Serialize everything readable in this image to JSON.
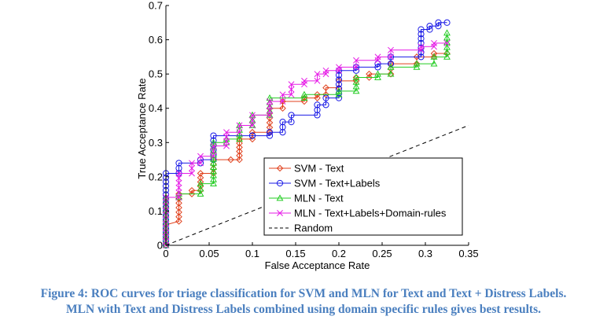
{
  "chart_data": {
    "type": "line",
    "title": "",
    "xlabel": "False Acceptance Rate",
    "ylabel": "True Acceptance Rate",
    "xlim": [
      0,
      0.35
    ],
    "ylim": [
      0,
      0.7
    ],
    "xticks": [
      "0",
      "0.05",
      "0.1",
      "0.15",
      "0.2",
      "0.25",
      "0.3",
      "0.35"
    ],
    "yticks": [
      "0",
      "0.1",
      "0.2",
      "0.3",
      "0.4",
      "0.5",
      "0.6",
      "0.7"
    ],
    "grid": false,
    "legend_position": "bottom-right",
    "series": [
      {
        "name": "SVM - Text",
        "color": "#e0401c",
        "marker": "diamond",
        "points": [
          [
            0,
            0
          ],
          [
            0,
            0.02
          ],
          [
            0,
            0.06
          ],
          [
            0.015,
            0.07
          ],
          [
            0.015,
            0.15
          ],
          [
            0.03,
            0.15
          ],
          [
            0.03,
            0.16
          ],
          [
            0.04,
            0.16
          ],
          [
            0.04,
            0.21
          ],
          [
            0.055,
            0.21
          ],
          [
            0.055,
            0.25
          ],
          [
            0.075,
            0.25
          ],
          [
            0.085,
            0.25
          ],
          [
            0.085,
            0.31
          ],
          [
            0.1,
            0.31
          ],
          [
            0.1,
            0.33
          ],
          [
            0.12,
            0.33
          ],
          [
            0.12,
            0.4
          ],
          [
            0.135,
            0.4
          ],
          [
            0.135,
            0.42
          ],
          [
            0.16,
            0.42
          ],
          [
            0.16,
            0.43
          ],
          [
            0.175,
            0.43
          ],
          [
            0.175,
            0.44
          ],
          [
            0.185,
            0.44
          ],
          [
            0.185,
            0.46
          ],
          [
            0.2,
            0.46
          ],
          [
            0.2,
            0.48
          ],
          [
            0.22,
            0.48
          ],
          [
            0.22,
            0.49
          ],
          [
            0.235,
            0.49
          ],
          [
            0.235,
            0.5
          ],
          [
            0.26,
            0.5
          ],
          [
            0.26,
            0.53
          ],
          [
            0.29,
            0.53
          ],
          [
            0.29,
            0.55
          ],
          [
            0.31,
            0.55
          ],
          [
            0.31,
            0.56
          ],
          [
            0.325,
            0.56
          ]
        ]
      },
      {
        "name": "SVM - Text+Labels",
        "color": "#1a1ae6",
        "marker": "circle",
        "points": [
          [
            0,
            0
          ],
          [
            0,
            0.21
          ],
          [
            0.015,
            0.21
          ],
          [
            0.015,
            0.24
          ],
          [
            0.04,
            0.24
          ],
          [
            0.04,
            0.25
          ],
          [
            0.055,
            0.25
          ],
          [
            0.055,
            0.32
          ],
          [
            0.1,
            0.32
          ],
          [
            0.1,
            0.32
          ],
          [
            0.12,
            0.32
          ],
          [
            0.12,
            0.33
          ],
          [
            0.135,
            0.33
          ],
          [
            0.135,
            0.36
          ],
          [
            0.145,
            0.36
          ],
          [
            0.145,
            0.38
          ],
          [
            0.175,
            0.38
          ],
          [
            0.175,
            0.41
          ],
          [
            0.185,
            0.41
          ],
          [
            0.185,
            0.43
          ],
          [
            0.2,
            0.43
          ],
          [
            0.2,
            0.51
          ],
          [
            0.22,
            0.51
          ],
          [
            0.22,
            0.52
          ],
          [
            0.245,
            0.52
          ],
          [
            0.245,
            0.53
          ],
          [
            0.26,
            0.53
          ],
          [
            0.26,
            0.55
          ],
          [
            0.295,
            0.55
          ],
          [
            0.295,
            0.63
          ],
          [
            0.305,
            0.63
          ],
          [
            0.305,
            0.64
          ],
          [
            0.315,
            0.64
          ],
          [
            0.315,
            0.65
          ],
          [
            0.325,
            0.65
          ]
        ]
      },
      {
        "name": "MLN - Text",
        "color": "#22cc22",
        "marker": "triangle",
        "points": [
          [
            0,
            0
          ],
          [
            0,
            0.14
          ],
          [
            0.015,
            0.14
          ],
          [
            0.015,
            0.15
          ],
          [
            0.04,
            0.15
          ],
          [
            0.04,
            0.18
          ],
          [
            0.055,
            0.18
          ],
          [
            0.055,
            0.3
          ],
          [
            0.07,
            0.3
          ],
          [
            0.07,
            0.31
          ],
          [
            0.085,
            0.31
          ],
          [
            0.085,
            0.35
          ],
          [
            0.1,
            0.35
          ],
          [
            0.1,
            0.38
          ],
          [
            0.12,
            0.38
          ],
          [
            0.12,
            0.43
          ],
          [
            0.16,
            0.43
          ],
          [
            0.16,
            0.44
          ],
          [
            0.2,
            0.44
          ],
          [
            0.2,
            0.45
          ],
          [
            0.22,
            0.45
          ],
          [
            0.22,
            0.49
          ],
          [
            0.245,
            0.49
          ],
          [
            0.245,
            0.5
          ],
          [
            0.26,
            0.5
          ],
          [
            0.26,
            0.52
          ],
          [
            0.29,
            0.52
          ],
          [
            0.29,
            0.53
          ],
          [
            0.31,
            0.53
          ],
          [
            0.31,
            0.55
          ],
          [
            0.325,
            0.55
          ],
          [
            0.325,
            0.62
          ]
        ]
      },
      {
        "name": "MLN - Text+Labels+Domain-rules",
        "color": "#e61ae6",
        "marker": "x",
        "points": [
          [
            0,
            0
          ],
          [
            0,
            0.14
          ],
          [
            0.015,
            0.14
          ],
          [
            0.015,
            0.21
          ],
          [
            0.03,
            0.21
          ],
          [
            0.03,
            0.24
          ],
          [
            0.04,
            0.24
          ],
          [
            0.04,
            0.26
          ],
          [
            0.055,
            0.26
          ],
          [
            0.055,
            0.29
          ],
          [
            0.07,
            0.29
          ],
          [
            0.07,
            0.33
          ],
          [
            0.085,
            0.33
          ],
          [
            0.085,
            0.35
          ],
          [
            0.1,
            0.35
          ],
          [
            0.1,
            0.38
          ],
          [
            0.12,
            0.38
          ],
          [
            0.12,
            0.42
          ],
          [
            0.135,
            0.42
          ],
          [
            0.135,
            0.44
          ],
          [
            0.145,
            0.44
          ],
          [
            0.145,
            0.47
          ],
          [
            0.16,
            0.47
          ],
          [
            0.16,
            0.48
          ],
          [
            0.175,
            0.48
          ],
          [
            0.175,
            0.5
          ],
          [
            0.185,
            0.5
          ],
          [
            0.185,
            0.51
          ],
          [
            0.2,
            0.51
          ],
          [
            0.2,
            0.52
          ],
          [
            0.22,
            0.52
          ],
          [
            0.22,
            0.54
          ],
          [
            0.245,
            0.54
          ],
          [
            0.245,
            0.55
          ],
          [
            0.26,
            0.55
          ],
          [
            0.26,
            0.57
          ],
          [
            0.295,
            0.57
          ],
          [
            0.295,
            0.58
          ],
          [
            0.31,
            0.58
          ],
          [
            0.31,
            0.59
          ],
          [
            0.325,
            0.59
          ]
        ]
      },
      {
        "name": "Random",
        "color": "#000000",
        "marker": "none",
        "dash": true,
        "points": [
          [
            0,
            0
          ],
          [
            0.35,
            0.35
          ]
        ]
      }
    ]
  },
  "caption": {
    "line1": "Figure 4: ROC curves for triage classification for SVM and MLN for Text and Text + Distress Labels.",
    "line2": "MLN with Text and Distress Labels combined using domain specific rules gives best results."
  }
}
